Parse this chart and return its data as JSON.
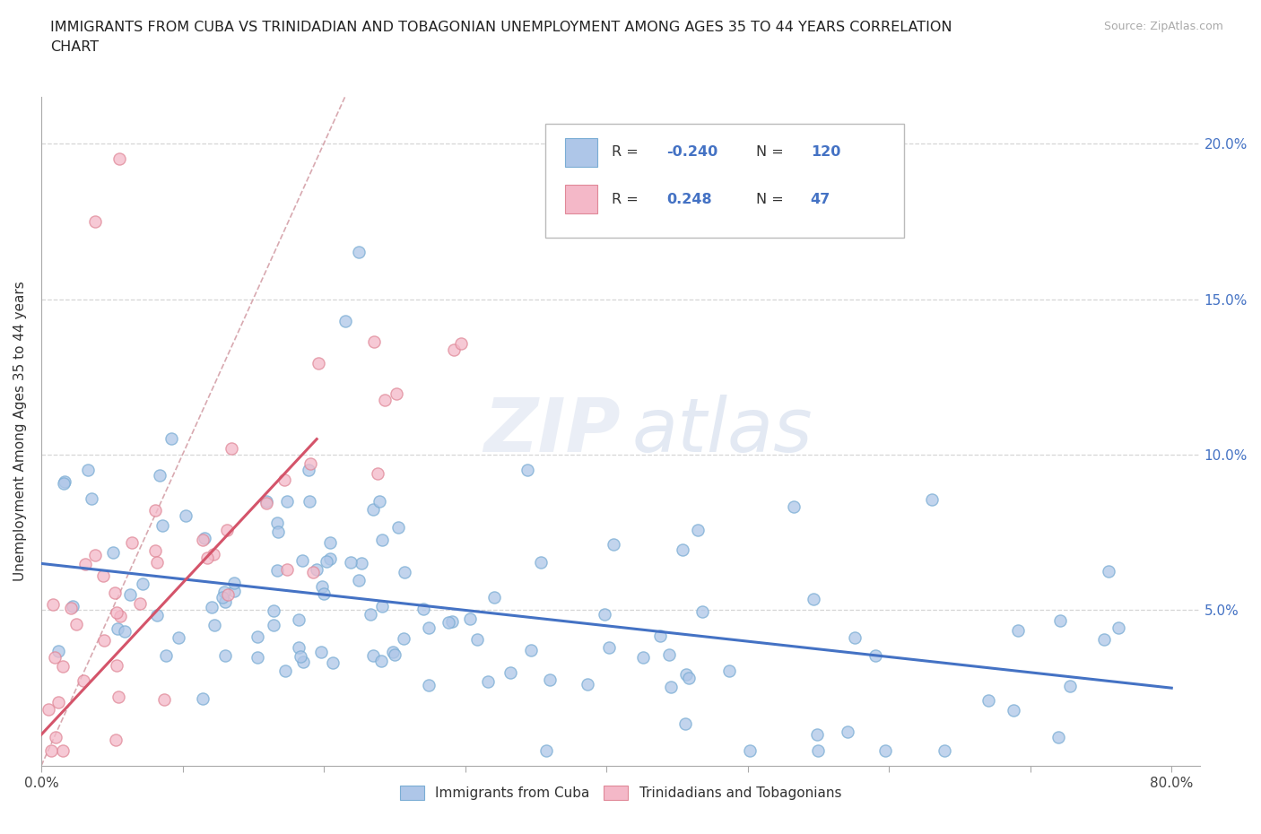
{
  "title": "IMMIGRANTS FROM CUBA VS TRINIDADIAN AND TOBAGONIAN UNEMPLOYMENT AMONG AGES 35 TO 44 YEARS CORRELATION\nCHART",
  "source": "Source: ZipAtlas.com",
  "ylabel": "Unemployment Among Ages 35 to 44 years",
  "xlim": [
    0.0,
    0.82
  ],
  "ylim": [
    0.0,
    0.215
  ],
  "legend_r_cuba": "-0.240",
  "legend_n_cuba": "120",
  "legend_r_tnt": "0.248",
  "legend_n_tnt": "47",
  "cuba_color": "#aec6e8",
  "cuba_edge_color": "#7aadd4",
  "tnt_color": "#f4b8c8",
  "tnt_edge_color": "#e08898",
  "cuba_line_color": "#4472c4",
  "tnt_line_color": "#d4546a",
  "diagonal_color": "#e0b0b8",
  "ytick_vals": [
    0.05,
    0.1,
    0.15,
    0.2
  ],
  "ytick_labels": [
    "5.0%",
    "10.0%",
    "15.0%",
    "20.0%"
  ],
  "xtick_left_label": "0.0%",
  "xtick_right_label": "80.0%",
  "bottom_legend_cuba": "Immigrants from Cuba",
  "bottom_legend_tnt": "Trinidadians and Tobagonians",
  "cuba_line_x": [
    0.0,
    0.8
  ],
  "cuba_line_y": [
    0.065,
    0.025
  ],
  "tnt_line_x": [
    0.0,
    0.195
  ],
  "tnt_line_y": [
    0.01,
    0.105
  ]
}
